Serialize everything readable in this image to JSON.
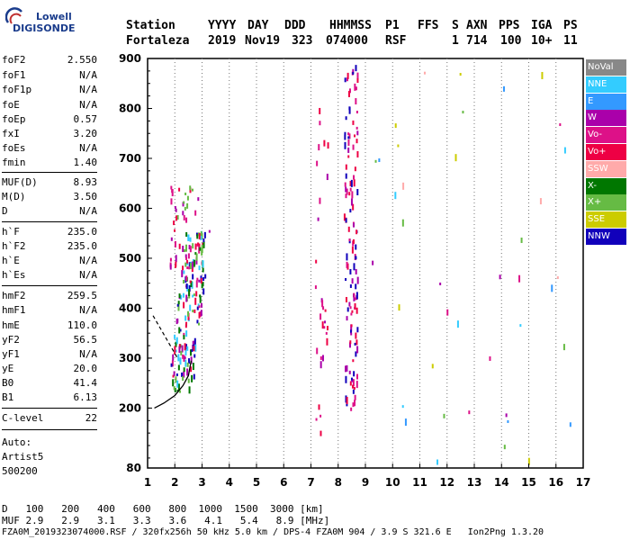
{
  "logo": {
    "brand": "Lowell",
    "name": "DIGISONDE"
  },
  "header": {
    "labels": [
      "Station",
      "YYYY",
      "DAY",
      "DDD",
      "HHMMSS",
      "P1",
      "FFS",
      "S",
      "AXN",
      "PPS",
      "IGA",
      "PS"
    ],
    "values": [
      "Fortaleza",
      "2019",
      "Nov19",
      "323",
      "074000",
      "RSF",
      "",
      "1",
      "714",
      "100",
      "10+",
      "11"
    ]
  },
  "params": [
    {
      "name": "foF2",
      "value": "2.550"
    },
    {
      "name": "foF1",
      "value": "N/A"
    },
    {
      "name": "foF1p",
      "value": "N/A"
    },
    {
      "name": "foE",
      "value": "N/A"
    },
    {
      "name": "foEp",
      "value": "0.57"
    },
    {
      "name": "fxI",
      "value": "3.20"
    },
    {
      "name": "foEs",
      "value": "N/A"
    },
    {
      "name": "fmin",
      "value": "1.40"
    },
    {
      "name": "MUF(D)",
      "value": "8.93"
    },
    {
      "name": "M(D)",
      "value": "3.50"
    },
    {
      "name": "D",
      "value": "N/A"
    },
    {
      "name": "h`F",
      "value": "235.0"
    },
    {
      "name": "h`F2",
      "value": "235.0"
    },
    {
      "name": "h`E",
      "value": "N/A"
    },
    {
      "name": "h`Es",
      "value": "N/A"
    },
    {
      "name": "hmF2",
      "value": "259.5"
    },
    {
      "name": "hmF1",
      "value": "N/A"
    },
    {
      "name": "hmE",
      "value": "110.0"
    },
    {
      "name": "yF2",
      "value": "56.5"
    },
    {
      "name": "yF1",
      "value": "N/A"
    },
    {
      "name": "yE",
      "value": "20.0"
    },
    {
      "name": "B0",
      "value": "41.4"
    },
    {
      "name": "B1",
      "value": "6.13"
    },
    {
      "name": "C-level",
      "value": "22"
    }
  ],
  "auto": {
    "line1": "Auto:",
    "line2": "Artist5",
    "line3": "500200"
  },
  "legend": [
    {
      "label": "NoVal",
      "color": "#888888"
    },
    {
      "label": "NNE",
      "color": "#33ccff"
    },
    {
      "label": "E",
      "color": "#3399ff"
    },
    {
      "label": "W",
      "color": "#aa00aa"
    },
    {
      "label": "Vo-",
      "color": "#dd1188"
    },
    {
      "label": "Vo+",
      "color": "#ee0044"
    },
    {
      "label": "SSW",
      "color": "#ffaaaa"
    },
    {
      "label": "X-",
      "color": "#007700"
    },
    {
      "label": "X+",
      "color": "#66bb44"
    },
    {
      "label": "SSE",
      "color": "#cccc00"
    },
    {
      "label": "NNW",
      "color": "#1100bb"
    }
  ],
  "footer": {
    "d_label": "D",
    "d_values": [
      "100",
      "200",
      "400",
      "600",
      "800",
      "1000",
      "1500",
      "3000"
    ],
    "d_unit": "[km]",
    "muf_label": "MUF",
    "muf_values": [
      "2.9",
      "2.9",
      "3.1",
      "3.3",
      "3.6",
      "4.1",
      "5.4",
      "8.9"
    ],
    "muf_unit": "[MHz]",
    "info": "FZA0M_2019323074000.RSF / 320fx256h 50 kHz 5.0 km / DPS-4 FZA0M 904 / 3.9 S 321.6 E   Ion2Png 1.3.20"
  },
  "chart_data": {
    "type": "scatter",
    "title": "",
    "xlabel": "",
    "ylabel": "",
    "xlim": [
      1,
      17
    ],
    "ylim": [
      80,
      900
    ],
    "x_ticks": [
      1,
      2,
      3,
      4,
      5,
      6,
      7,
      8,
      9,
      10,
      11,
      12,
      13,
      14,
      15,
      16,
      17
    ],
    "y_ticks": [
      80,
      200,
      300,
      400,
      500,
      600,
      700,
      800,
      900
    ],
    "grid": "dotted-vertical",
    "trace_profile": {
      "x": [
        1.25,
        1.6,
        2.0,
        2.3,
        2.5,
        2.6
      ],
      "y": [
        200,
        210,
        225,
        245,
        265,
        295
      ]
    },
    "dashed_extrapolation": {
      "x": [
        1.2,
        2.1
      ],
      "y": [
        385,
        300
      ]
    },
    "clusters": [
      {
        "name": "F-trace",
        "x": [
          1.9,
          3.2
        ],
        "y": [
          235,
          560
        ],
        "count": 180,
        "colors": [
          "#ee0044",
          "#dd1188",
          "#007700",
          "#66bb44",
          "#33ccff",
          "#1100bb",
          "#aa00aa"
        ]
      },
      {
        "name": "F-trace-upper",
        "x": [
          1.8,
          2.9
        ],
        "y": [
          480,
          660
        ],
        "count": 45,
        "colors": [
          "#dd1188",
          "#ee0044",
          "#66bb44",
          "#aa00aa"
        ]
      },
      {
        "name": "trace-8.5",
        "x": [
          8.2,
          8.7
        ],
        "y": [
          200,
          900
        ],
        "count": 130,
        "colors": [
          "#1100bb",
          "#aa00aa",
          "#dd1188",
          "#ee0044"
        ]
      },
      {
        "name": "trace-7.3",
        "x": [
          7.1,
          7.6
        ],
        "y": [
          100,
          880
        ],
        "count": 30,
        "colors": [
          "#dd1188",
          "#aa00aa",
          "#ee0044"
        ]
      },
      {
        "name": "isolated",
        "x": [
          9,
          16.8
        ],
        "y": [
          90,
          900
        ],
        "count": 40,
        "colors": [
          "#33ccff",
          "#3399ff",
          "#aa00aa",
          "#dd1188",
          "#ffaaaa",
          "#cccc00",
          "#66bb44"
        ]
      }
    ]
  }
}
